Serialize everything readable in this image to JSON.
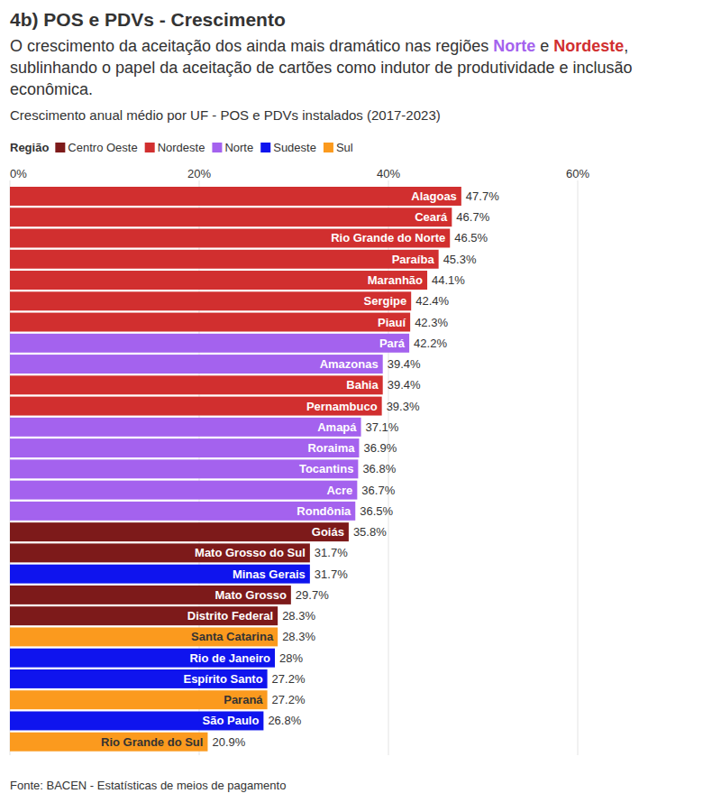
{
  "chart_data": {
    "type": "bar",
    "orientation": "horizontal",
    "title": "4b) POS e PDVs - Crescimento",
    "subtitle": [
      "O crescimento da aceitação dos ainda mais dramático nas regiões ",
      "Norte",
      " e ",
      "Nordeste",
      ", sublinhando o papel da aceitação de cartões como indutor de produtividade e inclusão econômica."
    ],
    "description": "Crescimento anual médio por UF - POS e PDVs instalados (2017-2023)",
    "source": "Fonte: BACEN - Estatísticas de meios de pagamento",
    "legend_title": "Região",
    "legend": "top-left",
    "categories": [
      "Alagoas",
      "Ceará",
      "Rio Grande do Norte",
      "Paraíba",
      "Maranhão",
      "Sergipe",
      "Piauí",
      "Pará",
      "Amazonas",
      "Bahia",
      "Pernambuco",
      "Amapá",
      "Roraima",
      "Tocantins",
      "Acre",
      "Rondônia",
      "Goiás",
      "Mato Grosso do Sul",
      "Minas Gerais",
      "Mato Grosso",
      "Distrito Federal",
      "Santa Catarina",
      "Rio de Janeiro",
      "Espírito Santo",
      "Paraná",
      "São Paulo",
      "Rio Grande do Sul"
    ],
    "series": [
      {
        "name": "Centro Oeste",
        "color": "#7d1a1a",
        "values": [
          null,
          null,
          null,
          null,
          null,
          null,
          null,
          null,
          null,
          null,
          null,
          null,
          null,
          null,
          null,
          null,
          35.8,
          31.7,
          null,
          29.7,
          28.3,
          null,
          null,
          null,
          null,
          null,
          null
        ],
        "value_labels": [
          null,
          null,
          null,
          null,
          null,
          null,
          null,
          null,
          null,
          null,
          null,
          null,
          null,
          null,
          null,
          null,
          "35.8%",
          "31.7%",
          null,
          "29.7%",
          "28.3%",
          null,
          null,
          null,
          null,
          null,
          null
        ]
      },
      {
        "name": "Nordeste",
        "color": "#d12f2f",
        "values": [
          47.7,
          46.7,
          46.5,
          45.3,
          44.1,
          42.4,
          42.3,
          null,
          null,
          39.4,
          39.3,
          null,
          null,
          null,
          null,
          null,
          null,
          null,
          null,
          null,
          null,
          null,
          null,
          null,
          null,
          null,
          null
        ],
        "value_labels": [
          "47.7%",
          "46.7%",
          "46.5%",
          "45.3%",
          "44.1%",
          "42.4%",
          "42.3%",
          null,
          null,
          "39.4%",
          "39.3%",
          null,
          null,
          null,
          null,
          null,
          null,
          null,
          null,
          null,
          null,
          null,
          null,
          null,
          null,
          null,
          null
        ]
      },
      {
        "name": "Norte",
        "color": "#a462ee",
        "values": [
          null,
          null,
          null,
          null,
          null,
          null,
          null,
          42.2,
          39.4,
          null,
          null,
          37.1,
          36.9,
          36.8,
          36.7,
          36.5,
          null,
          null,
          null,
          null,
          null,
          null,
          null,
          null,
          null,
          null,
          null
        ],
        "value_labels": [
          null,
          null,
          null,
          null,
          null,
          null,
          null,
          "42.2%",
          "39.4%",
          null,
          null,
          "37.1%",
          "36.9%",
          "36.8%",
          "36.7%",
          "36.5%",
          null,
          null,
          null,
          null,
          null,
          null,
          null,
          null,
          null,
          null,
          null
        ]
      },
      {
        "name": "Sudeste",
        "color": "#0f14ee",
        "values": [
          null,
          null,
          null,
          null,
          null,
          null,
          null,
          null,
          null,
          null,
          null,
          null,
          null,
          null,
          null,
          null,
          null,
          null,
          31.7,
          null,
          null,
          null,
          28,
          27.2,
          null,
          26.8,
          null
        ],
        "value_labels": [
          null,
          null,
          null,
          null,
          null,
          null,
          null,
          null,
          null,
          null,
          null,
          null,
          null,
          null,
          null,
          null,
          null,
          null,
          "31.7%",
          null,
          null,
          null,
          "28%",
          "27.2%",
          null,
          "26.8%",
          null
        ]
      },
      {
        "name": "Sul",
        "color": "#fb9a1e",
        "values": [
          null,
          null,
          null,
          null,
          null,
          null,
          null,
          null,
          null,
          null,
          null,
          null,
          null,
          null,
          null,
          null,
          null,
          null,
          null,
          null,
          null,
          28.3,
          null,
          null,
          27.2,
          null,
          20.9
        ],
        "value_labels": [
          null,
          null,
          null,
          null,
          null,
          null,
          null,
          null,
          null,
          null,
          null,
          null,
          null,
          null,
          null,
          null,
          null,
          null,
          null,
          null,
          null,
          "28.3%",
          null,
          null,
          "27.2%",
          null,
          "20.9%"
        ]
      }
    ],
    "xlim": [
      0,
      60
    ],
    "xticks": [
      {
        "value": 0,
        "label": "0%"
      },
      {
        "value": 20,
        "label": "20%"
      },
      {
        "value": 40,
        "label": "40%"
      },
      {
        "value": 60,
        "label": "60%"
      }
    ],
    "grid": true,
    "data_labels": true
  }
}
